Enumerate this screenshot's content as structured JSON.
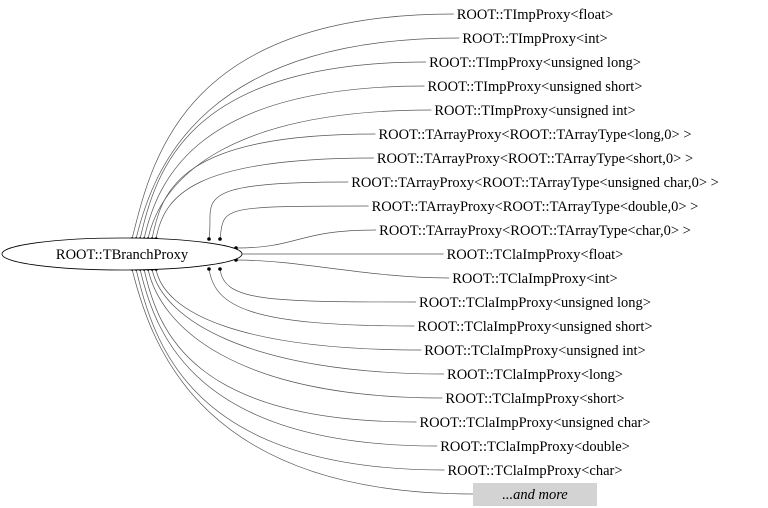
{
  "root": {
    "label": "ROOT::TBranchProxy"
  },
  "derived": [
    {
      "label": "ROOT::TImpProxy<float>"
    },
    {
      "label": "ROOT::TImpProxy<int>"
    },
    {
      "label": "ROOT::TImpProxy<unsigned long>"
    },
    {
      "label": "ROOT::TImpProxy<unsigned short>"
    },
    {
      "label": "ROOT::TImpProxy<unsigned int>"
    },
    {
      "label": "ROOT::TArrayProxy<ROOT::TArrayType<long,0> >"
    },
    {
      "label": "ROOT::TArrayProxy<ROOT::TArrayType<short,0> >"
    },
    {
      "label": "ROOT::TArrayProxy<ROOT::TArrayType<unsigned char,0> >"
    },
    {
      "label": "ROOT::TArrayProxy<ROOT::TArrayType<double,0> >"
    },
    {
      "label": "ROOT::TArrayProxy<ROOT::TArrayType<char,0> >"
    },
    {
      "label": "ROOT::TClaImpProxy<float>"
    },
    {
      "label": "ROOT::TClaImpProxy<int>"
    },
    {
      "label": "ROOT::TClaImpProxy<unsigned long>"
    },
    {
      "label": "ROOT::TClaImpProxy<unsigned short>"
    },
    {
      "label": "ROOT::TClaImpProxy<unsigned int>"
    },
    {
      "label": "ROOT::TClaImpProxy<long>"
    },
    {
      "label": "ROOT::TClaImpProxy<short>"
    },
    {
      "label": "ROOT::TClaImpProxy<unsigned char>"
    },
    {
      "label": "ROOT::TClaImpProxy<double>"
    },
    {
      "label": "ROOT::TClaImpProxy<char>"
    }
  ],
  "more": {
    "label": "...and more",
    "fill": "#d3d3d3"
  }
}
